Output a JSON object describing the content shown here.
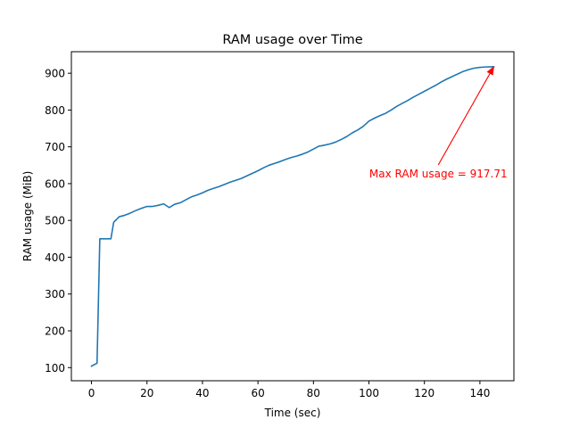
{
  "chart_data": {
    "type": "line",
    "title": "RAM usage over Time",
    "xlabel": "Time (sec)",
    "ylabel": "RAM usage (MiB)",
    "xlim": [
      -7.25,
      152.25
    ],
    "ylim": [
      64.3,
      958.5
    ],
    "xticks": [
      0,
      20,
      40,
      60,
      80,
      100,
      120,
      140
    ],
    "yticks": [
      100,
      200,
      300,
      400,
      500,
      600,
      700,
      800,
      900
    ],
    "grid": false,
    "legend": "none",
    "series": [
      {
        "color": "#1f77b4",
        "x": [
          0,
          2,
          3,
          5,
          7,
          8,
          10,
          12,
          14,
          16,
          18,
          20,
          22,
          24,
          26,
          28,
          30,
          32,
          34,
          36,
          38,
          40,
          42,
          44,
          46,
          48,
          50,
          52,
          54,
          56,
          58,
          60,
          62,
          64,
          66,
          68,
          70,
          72,
          74,
          76,
          78,
          80,
          82,
          83,
          86,
          88,
          90,
          92,
          94,
          96,
          98,
          100,
          102,
          104,
          106,
          108,
          110,
          112,
          114,
          116,
          118,
          120,
          122,
          124,
          126,
          128,
          130,
          132,
          134,
          136,
          138,
          140,
          142,
          144,
          145
        ],
        "y": [
          104,
          112,
          450,
          450,
          450,
          495,
          510,
          514,
          520,
          527,
          533,
          538,
          538,
          541,
          545,
          535,
          544,
          548,
          556,
          564,
          569,
          575,
          582,
          587,
          592,
          598,
          604,
          609,
          614,
          621,
          628,
          635,
          643,
          650,
          655,
          660,
          666,
          671,
          675,
          680,
          686,
          694,
          702,
          703,
          708,
          713,
          720,
          728,
          738,
          746,
          756,
          770,
          778,
          785,
          791,
          800,
          810,
          818,
          826,
          835,
          843,
          851,
          859,
          867,
          876,
          884,
          891,
          898,
          905,
          910,
          914,
          916,
          917,
          917.5,
          917.71
        ]
      }
    ],
    "annotation": {
      "text": "Max RAM usage = 917.71",
      "xy": [
        145,
        917.71
      ],
      "text_xy": [
        125,
        617
      ],
      "color": "#ff0000"
    }
  }
}
